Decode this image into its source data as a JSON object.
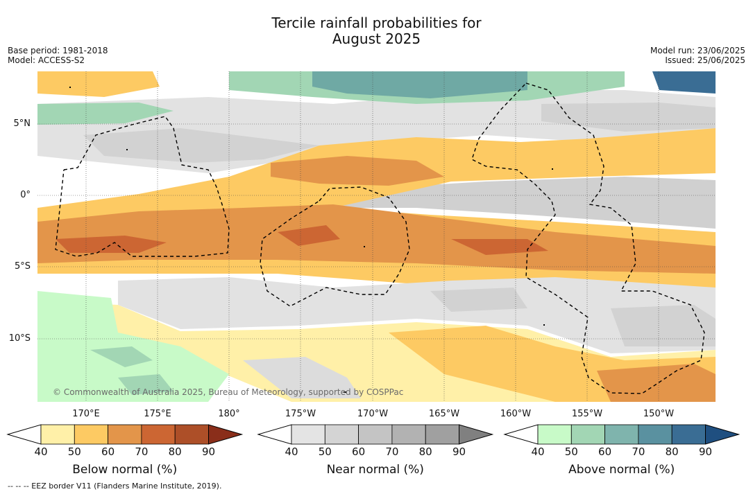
{
  "header": {
    "title_line1": "Tercile rainfall probabilities for",
    "title_line2": "August 2025",
    "base_period": "Base period: 1981-2018",
    "model": "Model: ACCESS-S2",
    "model_run": "Model run: 23/06/2025",
    "issued": "Issued: 25/06/2025"
  },
  "map": {
    "lat_labels": [
      "5°N",
      "0°",
      "5°S",
      "10°S"
    ],
    "lon_labels": [
      "170°E",
      "175°E",
      "180°",
      "175°W",
      "170°W",
      "165°W",
      "160°W",
      "155°W",
      "150°W"
    ],
    "copyright": "© Commonwealth of Australia 2025, Bureau of Meteorology, supported by COSPPac",
    "colors": {
      "background": "#ffffff",
      "eez_border": "#000000"
    }
  },
  "colorbars": [
    {
      "title": "Below normal (%)",
      "ticks": [
        "40",
        "50",
        "60",
        "70",
        "80",
        "90"
      ],
      "colors": [
        "#fff0a8",
        "#fdca63",
        "#e3954a",
        "#cc6633",
        "#ad4f28",
        "#8a2e1a"
      ]
    },
    {
      "title": "Near normal (%)",
      "ticks": [
        "40",
        "50",
        "60",
        "70",
        "80",
        "90"
      ],
      "colors": [
        "#e4e4e4",
        "#d4d4d4",
        "#c4c4c4",
        "#b2b2b2",
        "#a0a0a0",
        "#808080"
      ]
    },
    {
      "title": "Above normal (%)",
      "ticks": [
        "40",
        "50",
        "60",
        "70",
        "80",
        "90"
      ],
      "colors": [
        "#c8fac8",
        "#a2d6b4",
        "#7fb4ad",
        "#5a91a0",
        "#3a6d94",
        "#1f4f80"
      ]
    }
  ],
  "footnote": "-- -- -- EEZ border V11 (Flanders Marine Institute, 2019)."
}
